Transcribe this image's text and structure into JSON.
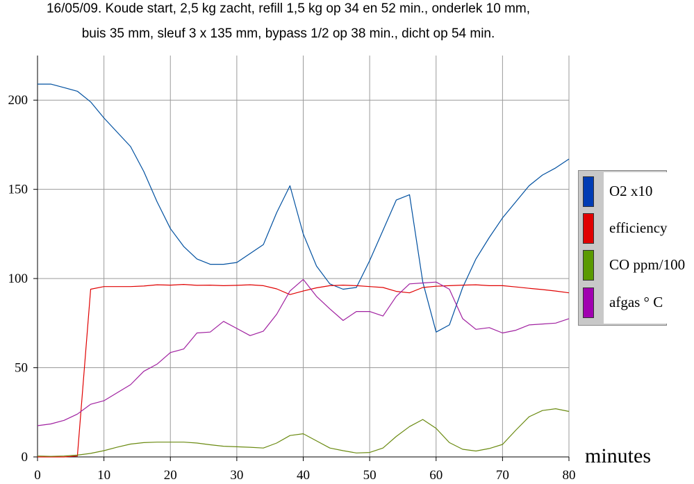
{
  "title_lines": [
    "16/05/09. Koude start, 2,5 kg zacht, refill 1,5 kg op 34 en 52 min., onderlek 10 mm,",
    "buis 35 mm, sleuf 3 x 135 mm, bypass 1/2 op 38 min., dicht op 54 min."
  ],
  "chart_data": {
    "type": "line",
    "title": "16/05/09. Koude start, 2,5 kg zacht, refill 1,5 kg op 34 en 52 min., onderlek 10 mm, buis 35 mm, sleuf 3 x 135 mm, bypass 1/2 op 38 min., dicht op 54 min.",
    "xlabel": "minutes",
    "ylabel": "",
    "xlim": [
      0,
      80
    ],
    "ylim": [
      0,
      225
    ],
    "xticks": [
      0,
      10,
      20,
      30,
      40,
      50,
      60,
      70,
      80
    ],
    "yticks": [
      0,
      50,
      100,
      150,
      200
    ],
    "grid": true,
    "legend_position": "right",
    "x": [
      0,
      2,
      4,
      6,
      8,
      10,
      12,
      14,
      16,
      18,
      20,
      22,
      24,
      26,
      28,
      30,
      32,
      34,
      36,
      38,
      40,
      42,
      44,
      46,
      48,
      50,
      52,
      54,
      56,
      58,
      60,
      62,
      64,
      66,
      68,
      70,
      72,
      74,
      76,
      78,
      80
    ],
    "series": [
      {
        "name": "O2 x10",
        "color": "#0050a0",
        "values": [
          209,
          209,
          207,
          205,
          199,
          190,
          182,
          174,
          160,
          143,
          128,
          118,
          111,
          108,
          108,
          109,
          114,
          119,
          137,
          152,
          125,
          107,
          97,
          94,
          95,
          110,
          127,
          144,
          147,
          98,
          70,
          74,
          95,
          111,
          123,
          134,
          143,
          152,
          158,
          162,
          167
        ]
      },
      {
        "name": "efficiency",
        "color": "#e00000",
        "values": [
          0,
          0,
          0,
          0.5,
          94,
          95.5,
          95.5,
          95.5,
          95.8,
          96.5,
          96.3,
          96.7,
          96.2,
          96.3,
          96,
          96.2,
          96.5,
          96,
          94.2,
          91,
          93,
          94.8,
          96,
          96.3,
          96,
          95.5,
          95,
          92.8,
          92,
          95,
          95.7,
          96,
          96.3,
          96.5,
          96,
          96,
          95.3,
          94.5,
          93.8,
          93,
          92
        ]
      },
      {
        "name": "CO ppm/100",
        "color": "#6a8a10",
        "values": [
          0.5,
          0.3,
          0.5,
          1,
          2,
          3.5,
          5.5,
          7.2,
          8,
          8.3,
          8.3,
          8.3,
          7.8,
          6.8,
          6,
          5.7,
          5.4,
          5,
          7.8,
          12,
          13,
          9,
          5,
          3.5,
          2.2,
          2.5,
          5,
          11.5,
          17,
          21,
          16,
          8,
          4.3,
          3.3,
          4.7,
          7,
          15,
          22.5,
          26,
          27,
          25.5
        ]
      },
      {
        "name": "afgas ° C",
        "color": "#a020a0",
        "values": [
          17.5,
          18.5,
          20.5,
          24,
          29.5,
          31.5,
          36,
          40.5,
          48,
          52,
          58.5,
          60.5,
          69.5,
          70,
          76,
          72,
          68,
          70.5,
          80,
          93,
          99.5,
          90,
          83,
          76.5,
          81.5,
          81.5,
          79,
          90,
          97,
          97.5,
          98,
          94,
          77.5,
          71.5,
          72.5,
          69.5,
          71,
          74,
          74.5,
          75,
          77.5
        ]
      }
    ]
  },
  "legend": {
    "items": [
      {
        "label": "O2 x10",
        "color": "#003cb4"
      },
      {
        "label": "efficiency",
        "color": "#e00000"
      },
      {
        "label": "CO ppm/100",
        "color": "#5a9a00"
      },
      {
        "label": "afgas ° C",
        "color": "#a000b0"
      }
    ]
  }
}
